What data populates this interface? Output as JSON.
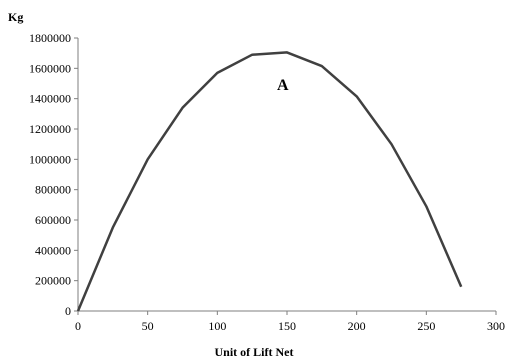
{
  "chart_data": {
    "type": "line",
    "ylabel": "Kg",
    "xlabel": "Unit of  Lift Net",
    "xlim": [
      0,
      300
    ],
    "ylim": [
      0,
      1800000
    ],
    "x_ticks": [
      0,
      50,
      100,
      150,
      200,
      250,
      300
    ],
    "y_ticks": [
      0,
      200000,
      400000,
      600000,
      800000,
      1000000,
      1200000,
      1400000,
      1600000,
      1800000
    ],
    "x_tick_labels": [
      "0",
      "50",
      "100",
      "150",
      "200",
      "250",
      "300"
    ],
    "y_tick_labels": [
      "0",
      "200000",
      "400000",
      "600000",
      "800000",
      "1000000",
      "1200000",
      "1400000",
      "1600000",
      "1800000"
    ],
    "grid": false,
    "legend": "none",
    "annotations": [
      {
        "text": "A",
        "x": 147,
        "y": 1490000
      }
    ],
    "series": [
      {
        "color": "#404040",
        "x": [
          0,
          25,
          50,
          75,
          100,
          125,
          150,
          175,
          200,
          225,
          250,
          275
        ],
        "y": [
          0,
          550000,
          1000000,
          1340000,
          1570000,
          1690000,
          1705000,
          1615000,
          1415000,
          1100000,
          690000,
          160000
        ]
      }
    ]
  }
}
